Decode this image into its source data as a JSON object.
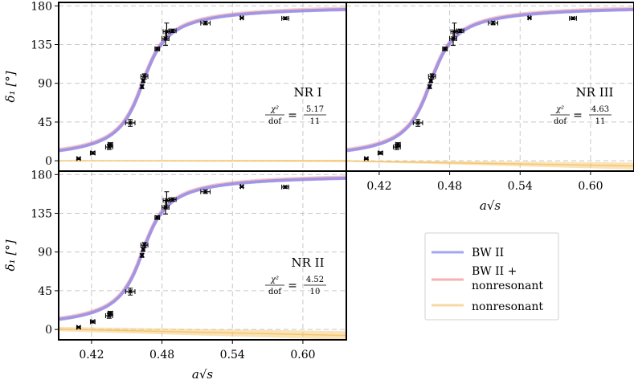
{
  "figure": {
    "ylabel": "δ₁ [°]",
    "xlabel": "a√s",
    "yticks": [
      0,
      45,
      90,
      135,
      180
    ],
    "xticks": [
      0.42,
      0.48,
      0.54,
      0.6
    ],
    "xtick_labels": [
      "0.42",
      "0.48",
      "0.54",
      "0.60"
    ],
    "ytick_labels": [
      "0",
      "45",
      "90",
      "135",
      "180"
    ]
  },
  "colors": {
    "bw": "#8080f0",
    "bw_nr": "#f08080",
    "nr": "#f5c060",
    "axes": "#000000",
    "grid": "#b0b0b0"
  },
  "legend": {
    "items": [
      {
        "label": "BW II",
        "color_key": "bw"
      },
      {
        "label": "BW II +",
        "label2": "nonresonant",
        "color_key": "bw_nr"
      },
      {
        "label": "nonresonant",
        "color_key": "nr"
      }
    ]
  },
  "chart_data": [
    {
      "type": "scatter",
      "panel": "NR I",
      "title": "NR I",
      "chi2_num": "5.17",
      "chi2_den": "11",
      "chi2_lhs_num": "χ²",
      "chi2_lhs_den": "dof",
      "xlabel": "",
      "ylabel": "δ₁ [°]",
      "xlim": [
        0.392,
        0.637
      ],
      "ylim": [
        -12,
        184
      ],
      "bw_model": {
        "mass": 0.4635,
        "gamma": 0.016,
        "asymptote": 182
      },
      "nr_band": {
        "upper_start": 0.5,
        "upper_end": 1.2,
        "lower_start": -0.5,
        "lower_end": -1.5
      },
      "points": [
        {
          "x": 0.409,
          "y": 2.5,
          "xerr": 0.0015,
          "yerr": 1
        },
        {
          "x": 0.421,
          "y": 9,
          "xerr": 0.002,
          "yerr": 1.5
        },
        {
          "x": 0.435,
          "y": 16,
          "xerr": 0.003,
          "yerr": 3
        },
        {
          "x": 0.436,
          "y": 19,
          "xerr": 0.002,
          "yerr": 2
        },
        {
          "x": 0.453,
          "y": 44,
          "xerr": 0.004,
          "yerr": 4
        },
        {
          "x": 0.463,
          "y": 86,
          "xerr": 0.001,
          "yerr": 2
        },
        {
          "x": 0.464,
          "y": 93,
          "xerr": 0.001,
          "yerr": 2
        },
        {
          "x": 0.465,
          "y": 98,
          "xerr": 0.003,
          "yerr": 3
        },
        {
          "x": 0.476,
          "y": 130,
          "xerr": 0.002,
          "yerr": 2
        },
        {
          "x": 0.483,
          "y": 142,
          "xerr": 0.003,
          "yerr": 8
        },
        {
          "x": 0.484,
          "y": 150,
          "xerr": 0.003,
          "yerr": 10
        },
        {
          "x": 0.489,
          "y": 151,
          "xerr": 0.003,
          "yerr": 2
        },
        {
          "x": 0.517,
          "y": 160,
          "xerr": 0.004,
          "yerr": 2
        },
        {
          "x": 0.548,
          "y": 166,
          "xerr": 0.001,
          "yerr": 1
        },
        {
          "x": 0.585,
          "y": 165.5,
          "xerr": 0.003,
          "yerr": 1.5
        }
      ]
    },
    {
      "type": "scatter",
      "panel": "NR III",
      "title": "NR III",
      "chi2_num": "4.63",
      "chi2_den": "11",
      "chi2_lhs_num": "χ²",
      "chi2_lhs_den": "dof",
      "xlabel": "a√s",
      "ylabel": "",
      "xlim": [
        0.392,
        0.637
      ],
      "ylim": [
        -12,
        184
      ],
      "bw_model": {
        "mass": 0.4635,
        "gamma": 0.016,
        "asymptote": 182
      },
      "nr_band": {
        "upper_start": 0.5,
        "upper_end": -2,
        "lower_start": -1,
        "lower_end": -10
      },
      "points": [
        {
          "x": 0.409,
          "y": 2.5,
          "xerr": 0.0015,
          "yerr": 1
        },
        {
          "x": 0.421,
          "y": 9,
          "xerr": 0.002,
          "yerr": 1.5
        },
        {
          "x": 0.435,
          "y": 16,
          "xerr": 0.003,
          "yerr": 3
        },
        {
          "x": 0.436,
          "y": 19,
          "xerr": 0.002,
          "yerr": 2
        },
        {
          "x": 0.453,
          "y": 44,
          "xerr": 0.004,
          "yerr": 4
        },
        {
          "x": 0.463,
          "y": 86,
          "xerr": 0.001,
          "yerr": 2
        },
        {
          "x": 0.464,
          "y": 93,
          "xerr": 0.001,
          "yerr": 2
        },
        {
          "x": 0.465,
          "y": 98,
          "xerr": 0.003,
          "yerr": 3
        },
        {
          "x": 0.476,
          "y": 130,
          "xerr": 0.002,
          "yerr": 2
        },
        {
          "x": 0.483,
          "y": 142,
          "xerr": 0.003,
          "yerr": 8
        },
        {
          "x": 0.484,
          "y": 150,
          "xerr": 0.003,
          "yerr": 10
        },
        {
          "x": 0.489,
          "y": 151,
          "xerr": 0.003,
          "yerr": 2
        },
        {
          "x": 0.517,
          "y": 160,
          "xerr": 0.004,
          "yerr": 2
        },
        {
          "x": 0.548,
          "y": 166,
          "xerr": 0.001,
          "yerr": 1
        },
        {
          "x": 0.585,
          "y": 165.5,
          "xerr": 0.003,
          "yerr": 1.5
        }
      ]
    },
    {
      "type": "scatter",
      "panel": "NR II",
      "title": "NR II",
      "chi2_num": "4.52",
      "chi2_den": "10",
      "chi2_lhs_num": "χ²",
      "chi2_lhs_den": "dof",
      "xlabel": "a√s",
      "ylabel": "δ₁ [°]",
      "xlim": [
        0.392,
        0.637
      ],
      "ylim": [
        -12,
        184
      ],
      "bw_model": {
        "mass": 0.4635,
        "gamma": 0.016,
        "asymptote": 182
      },
      "nr_band": {
        "upper_start": 3,
        "upper_end": -2,
        "lower_start": -2,
        "lower_end": -12
      },
      "points": [
        {
          "x": 0.409,
          "y": 2.5,
          "xerr": 0.0015,
          "yerr": 1
        },
        {
          "x": 0.421,
          "y": 9,
          "xerr": 0.002,
          "yerr": 1.5
        },
        {
          "x": 0.435,
          "y": 16,
          "xerr": 0.003,
          "yerr": 3
        },
        {
          "x": 0.436,
          "y": 19,
          "xerr": 0.002,
          "yerr": 2
        },
        {
          "x": 0.453,
          "y": 44,
          "xerr": 0.004,
          "yerr": 4
        },
        {
          "x": 0.463,
          "y": 86,
          "xerr": 0.001,
          "yerr": 2
        },
        {
          "x": 0.464,
          "y": 93,
          "xerr": 0.001,
          "yerr": 2
        },
        {
          "x": 0.465,
          "y": 98,
          "xerr": 0.003,
          "yerr": 3
        },
        {
          "x": 0.476,
          "y": 130,
          "xerr": 0.002,
          "yerr": 2
        },
        {
          "x": 0.483,
          "y": 142,
          "xerr": 0.003,
          "yerr": 8
        },
        {
          "x": 0.484,
          "y": 150,
          "xerr": 0.003,
          "yerr": 10
        },
        {
          "x": 0.489,
          "y": 151,
          "xerr": 0.003,
          "yerr": 2
        },
        {
          "x": 0.517,
          "y": 160,
          "xerr": 0.004,
          "yerr": 2
        },
        {
          "x": 0.548,
          "y": 166,
          "xerr": 0.001,
          "yerr": 1
        },
        {
          "x": 0.585,
          "y": 165.5,
          "xerr": 0.003,
          "yerr": 1.5
        }
      ]
    }
  ]
}
